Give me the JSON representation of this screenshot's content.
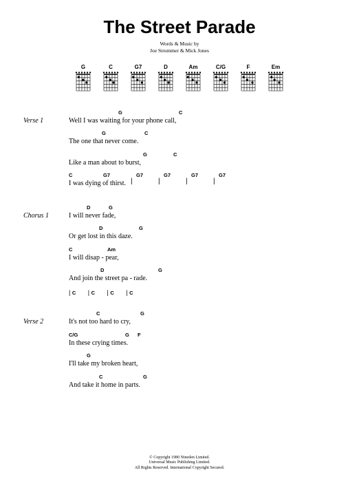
{
  "title": "The Street Parade",
  "credits_line1": "Words & Music by",
  "credits_line2": "Joe Strummer & Mick Jones",
  "chords": [
    "G",
    "C",
    "G7",
    "D",
    "Am",
    "C/G",
    "F",
    "Em"
  ],
  "verse1": {
    "label": "Verse 1",
    "lines": [
      {
        "chords": [
          [
            "G",
            72
          ],
          [
            "C",
            160
          ]
        ],
        "text": "Well I was waiting for your phone call,"
      },
      {
        "chords": [
          [
            "G",
            48
          ],
          [
            "C",
            110
          ]
        ],
        "text": "The one that never come."
      },
      {
        "chords": [
          [
            "G",
            108
          ],
          [
            "C",
            152
          ]
        ],
        "text": "Like a man about to burst,"
      },
      {
        "chords": [
          [
            "C",
            0
          ],
          [
            "G7",
            50
          ]
        ],
        "text": "I was dying of thirst."
      }
    ],
    "bars": "| G7      | G7      | G7      | G7"
  },
  "chorus1": {
    "label": "Chorus 1",
    "lines": [
      {
        "chords": [
          [
            "D",
            26
          ],
          [
            "G",
            58
          ]
        ],
        "text": "I will never fade,"
      },
      {
        "chords": [
          [
            "D",
            44
          ],
          [
            "G",
            102
          ]
        ],
        "text": "Or get lost in this daze."
      },
      {
        "chords": [
          [
            "C",
            0
          ],
          [
            "Am",
            56
          ]
        ],
        "text": "I will disap - pear,"
      },
      {
        "chords": [
          [
            "D",
            46
          ],
          [
            "G",
            130
          ]
        ],
        "text": "And join the street pa - rade."
      }
    ],
    "bars": "| C       | C       | C       | C"
  },
  "verse2": {
    "label": "Verse 2",
    "lines": [
      {
        "chords": [
          [
            "C",
            40
          ],
          [
            "G",
            104
          ]
        ],
        "text": "It's not too hard to cry,"
      },
      {
        "chords": [
          [
            "C/G",
            0
          ],
          [
            "G",
            82
          ],
          [
            "F",
            100
          ]
        ],
        "text": "In these crying times."
      },
      {
        "chords": [
          [
            "G",
            26
          ]
        ],
        "text": "I'll take my broken heart,"
      },
      {
        "chords": [
          [
            "C",
            44
          ],
          [
            "G",
            108
          ]
        ],
        "text": "And take it home in parts."
      }
    ]
  },
  "copyright": {
    "l1": "© Copyright 1980 Nineden Limited.",
    "l2": "Universal Music Publishing Limited.",
    "l3": "All Rights Reserved. International Copyright Secured."
  },
  "style": {
    "title_fontsize": 26,
    "body_fontsize": 10,
    "chord_fontsize": 7.5,
    "background": "#ffffff",
    "text_color": "#000000"
  }
}
